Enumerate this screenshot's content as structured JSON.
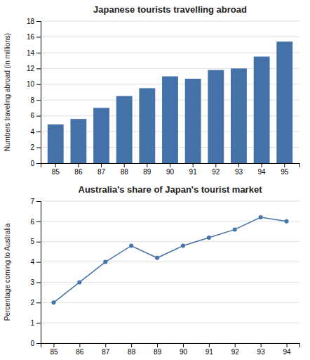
{
  "chart_data": [
    {
      "type": "bar",
      "title": "Japanese tourists travelling abroad",
      "y_label": "Numbers traveling abroad (in millions)",
      "categories": [
        "85",
        "86",
        "87",
        "88",
        "89",
        "90",
        "91",
        "92",
        "93",
        "94",
        "95"
      ],
      "values": [
        4.9,
        5.6,
        7.0,
        8.5,
        9.5,
        11.0,
        10.7,
        11.8,
        12.0,
        13.5,
        15.4
      ],
      "color": "#4472A8",
      "ylim": [
        0,
        18
      ],
      "yticks": [
        0,
        2,
        4,
        6,
        8,
        10,
        12,
        14,
        16,
        18
      ],
      "grid": true
    },
    {
      "type": "line",
      "title": "Australia's share of Japan's tourist market",
      "y_label": "Percentage coming  to Australia",
      "categories": [
        "85",
        "86",
        "87",
        "88",
        "89",
        "90",
        "91",
        "92",
        "93",
        "94"
      ],
      "values": [
        2.0,
        3.0,
        4.0,
        4.8,
        4.2,
        4.8,
        5.2,
        5.6,
        6.2,
        6.0
      ],
      "color": "#4472A8",
      "marker": "circle",
      "ylim": [
        0,
        7
      ],
      "yticks": [
        0,
        1,
        2,
        3,
        4,
        5,
        6,
        7
      ],
      "grid": true
    }
  ]
}
